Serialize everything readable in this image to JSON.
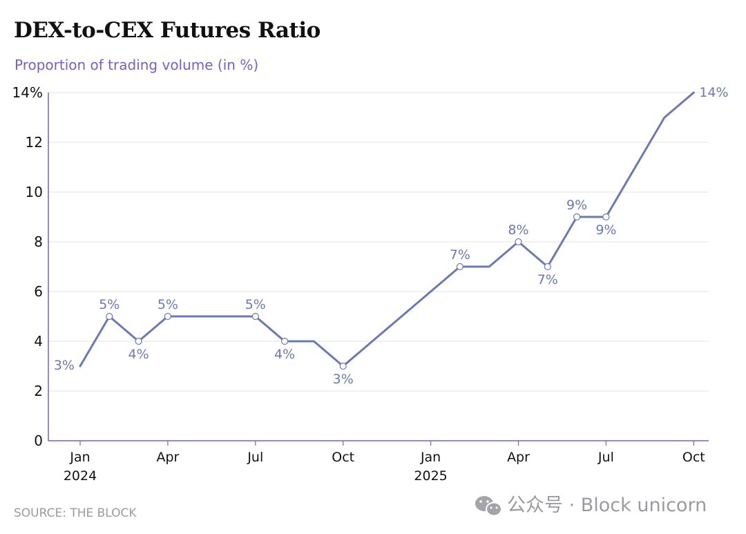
{
  "chart_data": {
    "type": "line",
    "title": "DEX-to-CEX Futures Ratio",
    "subtitle": "Proportion of trading volume (in %)",
    "x": [
      "2024-01",
      "2024-02",
      "2024-03",
      "2024-04",
      "2024-05",
      "2024-06",
      "2024-07",
      "2024-08",
      "2024-09",
      "2024-10",
      "2024-11",
      "2024-12",
      "2025-01",
      "2025-02",
      "2025-03",
      "2025-04",
      "2025-05",
      "2025-06",
      "2025-07",
      "2025-08",
      "2025-09",
      "2025-10"
    ],
    "series": [
      {
        "values": [
          3,
          5,
          4,
          5,
          5,
          5,
          5,
          4,
          4,
          3,
          4,
          5,
          6,
          7,
          7,
          8,
          7,
          9,
          9,
          11,
          13,
          14
        ],
        "color": "#6a78b8"
      }
    ],
    "point_labels": [
      {
        "x": "2024-01",
        "text": "3%",
        "position": "left"
      },
      {
        "x": "2024-02",
        "text": "5%",
        "position": "above"
      },
      {
        "x": "2024-03",
        "text": "4%",
        "position": "below"
      },
      {
        "x": "2024-04",
        "text": "5%",
        "position": "above"
      },
      {
        "x": "2024-07",
        "text": "5%",
        "position": "above"
      },
      {
        "x": "2024-08",
        "text": "4%",
        "position": "below"
      },
      {
        "x": "2024-10",
        "text": "3%",
        "position": "below"
      },
      {
        "x": "2025-02",
        "text": "7%",
        "position": "above"
      },
      {
        "x": "2025-04",
        "text": "8%",
        "position": "above"
      },
      {
        "x": "2025-05",
        "text": "7%",
        "position": "below"
      },
      {
        "x": "2025-06",
        "text": "9%",
        "position": "above"
      },
      {
        "x": "2025-07",
        "text": "9%",
        "position": "below"
      },
      {
        "x": "2025-10",
        "text": "14%",
        "position": "right"
      }
    ],
    "marker_points": [
      "2024-02",
      "2024-03",
      "2024-04",
      "2024-07",
      "2024-08",
      "2024-10",
      "2025-02",
      "2025-04",
      "2025-05",
      "2025-06",
      "2025-07"
    ],
    "y_ticks": [
      {
        "value": 0,
        "label": "0"
      },
      {
        "value": 2,
        "label": "2"
      },
      {
        "value": 4,
        "label": "4"
      },
      {
        "value": 6,
        "label": "6"
      },
      {
        "value": 8,
        "label": "8"
      },
      {
        "value": 10,
        "label": "10"
      },
      {
        "value": 12,
        "label": "12"
      },
      {
        "value": 14,
        "label": "14%"
      }
    ],
    "x_ticks": [
      {
        "x": "2024-01",
        "lines": [
          "Jan",
          "2024"
        ]
      },
      {
        "x": "2024-04",
        "lines": [
          "Apr"
        ]
      },
      {
        "x": "2024-07",
        "lines": [
          "Jul"
        ]
      },
      {
        "x": "2024-10",
        "lines": [
          "Oct"
        ]
      },
      {
        "x": "2025-01",
        "lines": [
          "Jan",
          "2025"
        ]
      },
      {
        "x": "2025-04",
        "lines": [
          "Apr"
        ]
      },
      {
        "x": "2025-07",
        "lines": [
          "Jul"
        ]
      },
      {
        "x": "2025-10",
        "lines": [
          "Oct"
        ]
      }
    ],
    "ylim": [
      0,
      14
    ],
    "grid": true,
    "source": "SOURCE: THE BLOCK"
  },
  "watermark": {
    "text": "公众号 · Block unicorn",
    "icon": "wechat-icon"
  },
  "colors": {
    "line": "#6a78b8",
    "subtitle": "#7d5cc6",
    "axis": "#7d5cc6",
    "grid": "#e3e3e8",
    "source": "#9a9aa2"
  }
}
